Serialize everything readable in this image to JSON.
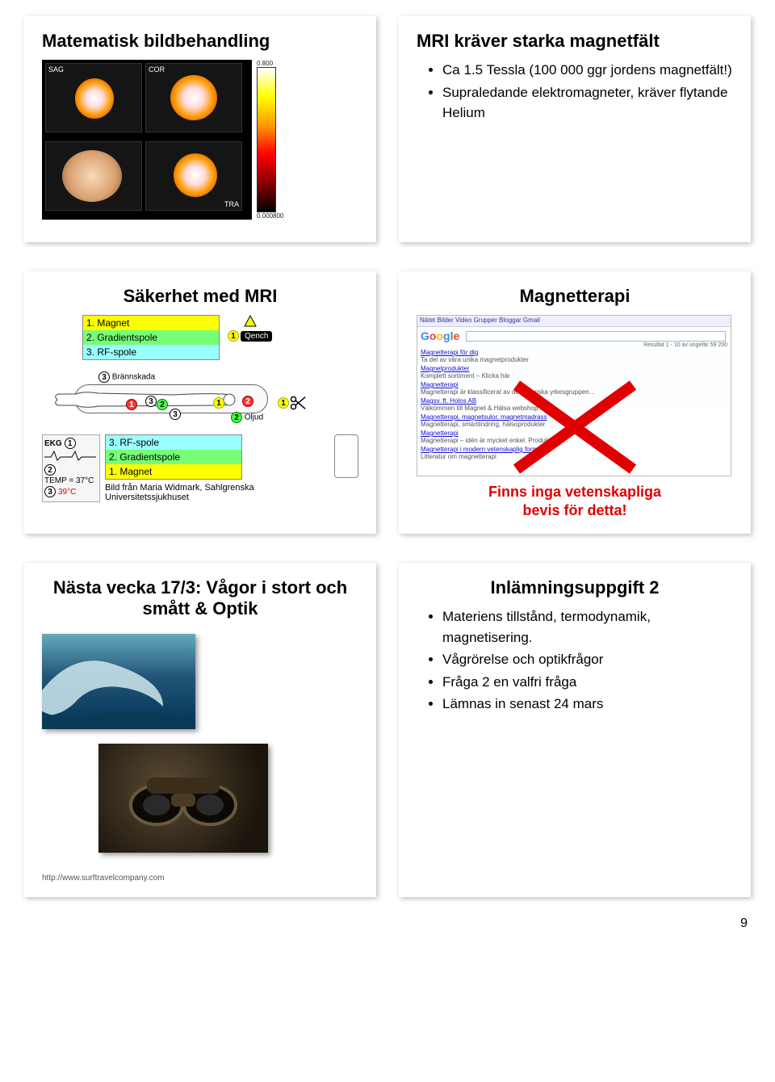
{
  "slides": {
    "s1": {
      "title": "Matematisk bildbehandling",
      "scan_labels": [
        "SAG",
        "COR",
        "TRA"
      ],
      "bar_top": "0.800",
      "bar_lo": "0.000800"
    },
    "s2": {
      "title": "MRI kräver starka magnetfält",
      "bullets": [
        "Ca 1.5 Tessla (100 000 ggr jordens magnetfält!)",
        "Supraledande elektromagneter, kräver flytande Helium"
      ]
    },
    "s3": {
      "title": "Säkerhet med MRI",
      "legend": [
        "1. Magnet",
        "2. Gradientspole",
        "3. RF-spole"
      ],
      "legend2": [
        "3. RF-spole",
        "2. Gradientspole",
        "1. Magnet"
      ],
      "quench": "Qench",
      "brannskada": "Brännskada",
      "oljud": "Oljud",
      "ekg_title": "EKG",
      "temp1": "TEMP = 37°C",
      "temp2": "39°C",
      "caption": "Bild från Maria Widmark, Sahlgrenska Universitetssjukhuset"
    },
    "s4": {
      "title": "Magnetterapi",
      "google_tabs": "Nätet  Bilder  Video  Grupper  Bloggar  Gmail",
      "google_hits": "Resultat 1 - 10 av ungefär 59 200",
      "results": [
        {
          "t": "Magnetterapi för dig",
          "d": "Ta del av våra unika magnetprodukter"
        },
        {
          "t": "Magnetprodukter",
          "d": "Komplett sortiment – Klicka här"
        },
        {
          "t": "Magnetterapi",
          "d": "Magnetterapi är klassificerat av den svenska yrkesgruppen…"
        },
        {
          "t": "Magsv. ft. Holos AB",
          "d": "Välkommen till Magnet & Hälsa webshop"
        },
        {
          "t": "Magnetterapi, magnetsulor, magnetmadrass",
          "d": "Magnetterapi, smärtlindring, hälsoprodukter"
        },
        {
          "t": "Magnetterapi",
          "d": "Magnetterapi – idén är mycket enkel. Produkter fr…"
        },
        {
          "t": "Magnetterapi i modern vetenskaplig form",
          "d": "Litteratur om magnetterapi"
        }
      ],
      "verdict1": "Finns inga vetenskapliga",
      "verdict2": "bevis för detta!"
    },
    "s5": {
      "title": "Nästa vecka 17/3: Vågor i stort och smått & Optik",
      "cite": "http://www.surftravelcompany.com"
    },
    "s6": {
      "title": "Inlämningsuppgift 2",
      "bullets": [
        "Materiens tillstånd, termodynamik, magnetisering.",
        "Vågrörelse och optikfrågor",
        "Fråga 2 en valfri fråga",
        "Lämnas in senast 24 mars"
      ]
    }
  },
  "page_number": "9",
  "colors": {
    "red": "#e00000",
    "yellow": "#ffff00",
    "green": "#76ff76",
    "cyan": "#99ffff"
  }
}
